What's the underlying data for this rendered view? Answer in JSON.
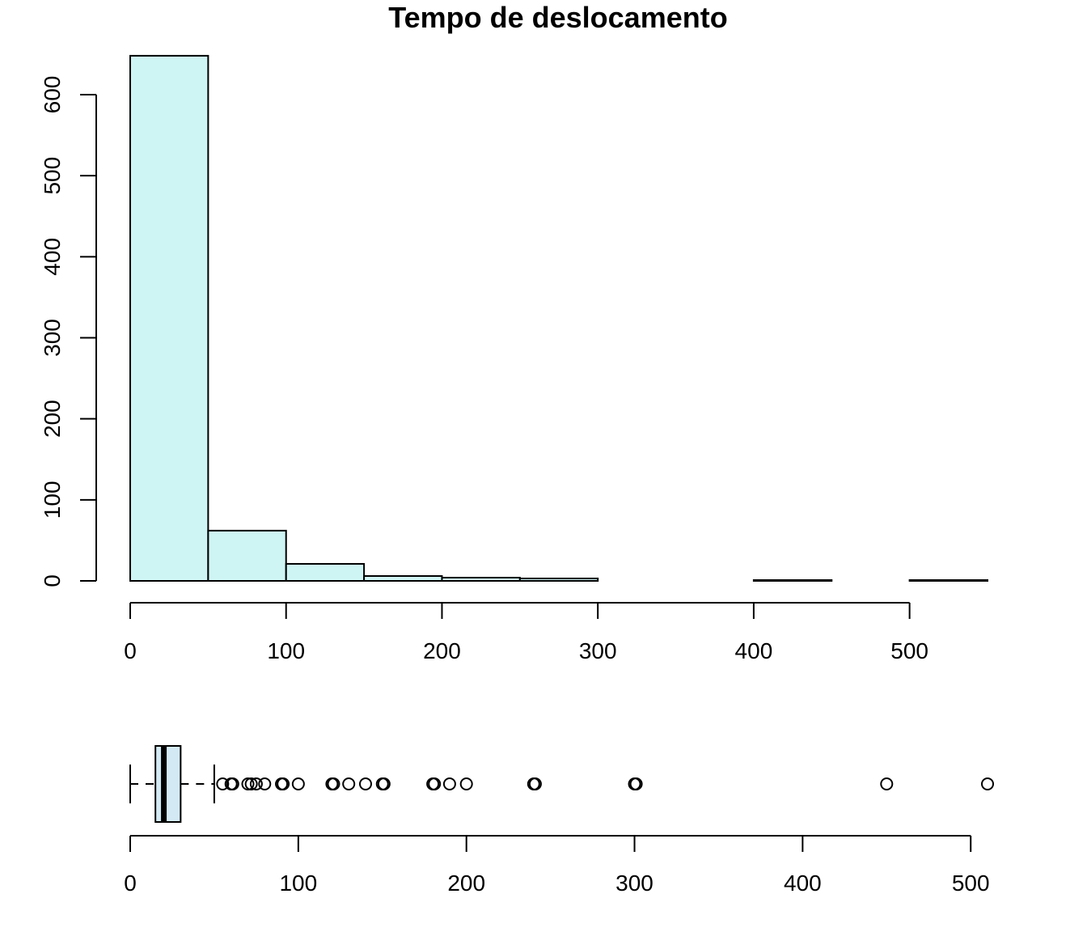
{
  "chart_data": [
    {
      "type": "histogram",
      "title": "Tempo de deslocamento",
      "xlabel": "",
      "ylabel": "",
      "bin_edges": [
        0,
        50,
        100,
        150,
        200,
        250,
        300,
        350,
        400,
        450,
        500,
        550
      ],
      "counts": [
        648,
        62,
        21,
        6,
        4,
        3,
        0,
        0,
        1,
        0,
        1
      ],
      "xlim": [
        0,
        550
      ],
      "ylim": [
        0,
        600
      ],
      "x_ticks": [
        "0",
        "100",
        "200",
        "300",
        "400",
        "500"
      ],
      "y_ticks": [
        "0",
        "100",
        "200",
        "300",
        "400",
        "500",
        "600"
      ],
      "bar_color": "#cff4f4",
      "grid": false
    },
    {
      "type": "boxplot",
      "orientation": "horizontal",
      "whisker_low": 0,
      "q1": 15,
      "median": 20,
      "q3": 30,
      "whisker_high": 50,
      "outliers": [
        55,
        60,
        61,
        70,
        72,
        75,
        80,
        90,
        91,
        100,
        120,
        121,
        130,
        140,
        150,
        151,
        180,
        181,
        190,
        200,
        240,
        241,
        300,
        301,
        450,
        510
      ],
      "xlim": [
        0,
        510
      ],
      "x_ticks": [
        "0",
        "100",
        "200",
        "300",
        "400",
        "500"
      ],
      "box_color": "#d3eaf5"
    }
  ]
}
